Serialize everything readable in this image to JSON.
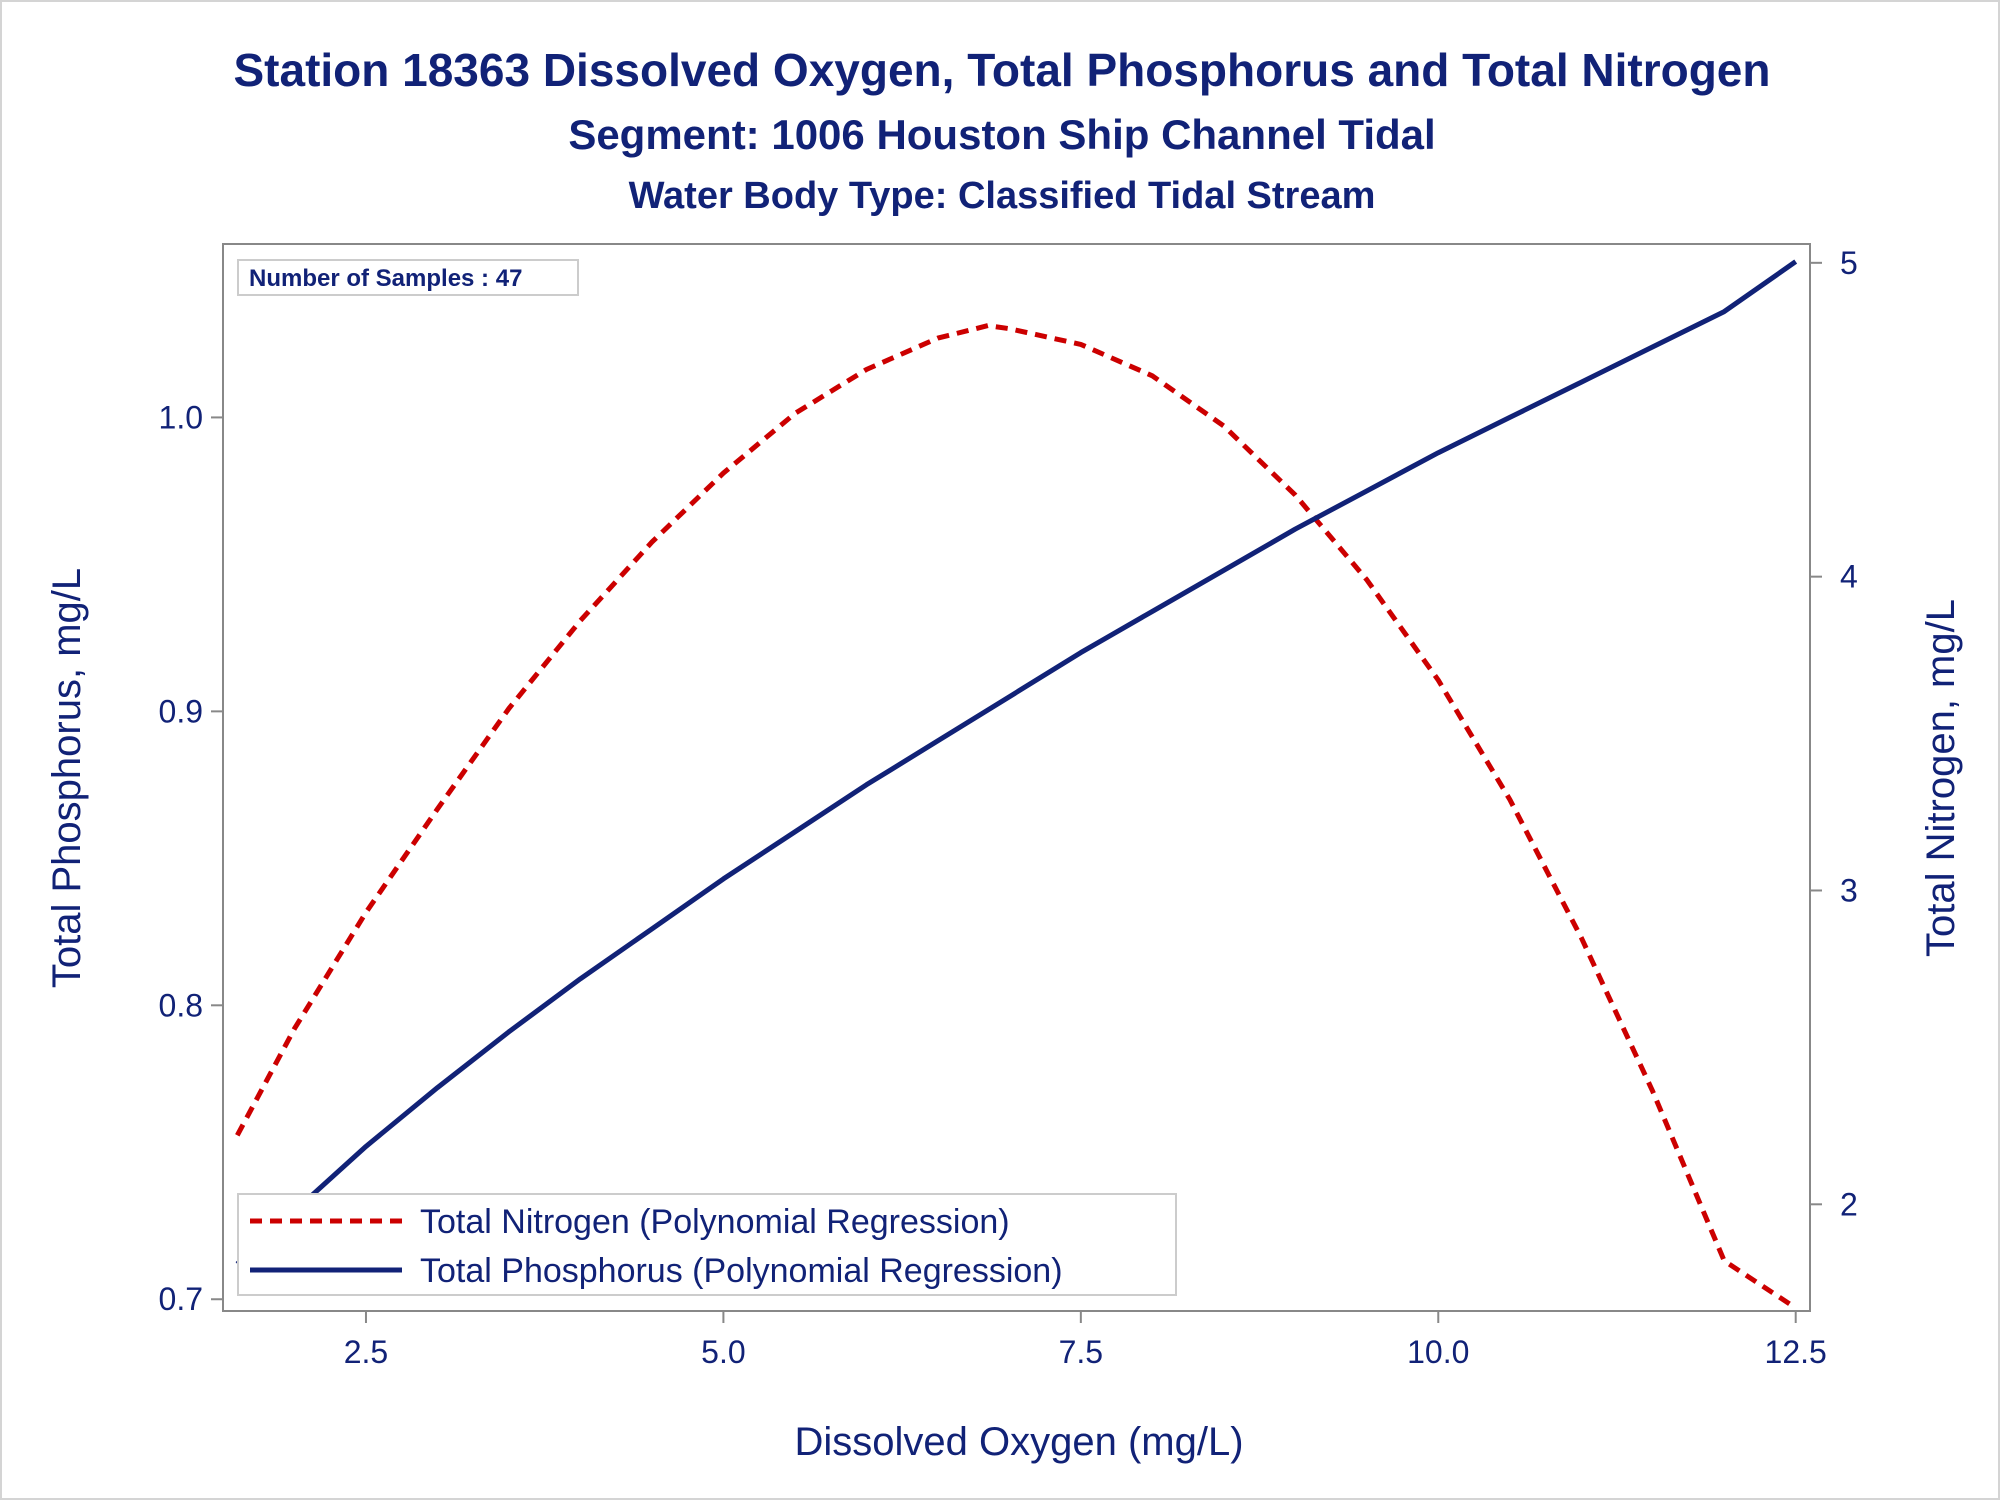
{
  "chart_data": {
    "type": "line",
    "title": "Station 18363  Dissolved Oxygen, Total Phosphorus and Total Nitrogen",
    "subtitle": "Segment: 1006  Houston Ship Channel Tidal",
    "subtitle2": "Water Body Type: Classified Tidal Stream",
    "xlabel": "Dissolved Oxygen (mg/L)",
    "ylabel": "Total Phosphorus, mg/L",
    "y2label": "Total Nitrogen, mg/L",
    "inset": "Number of Samples : 47",
    "xlim": [
      1.5,
      12.6
    ],
    "ylim": [
      0.696,
      1.059
    ],
    "y2lim": [
      1.66,
      5.06
    ],
    "x_ticks": [
      2.5,
      5.0,
      7.5,
      10.0,
      12.5
    ],
    "x_tick_labels": [
      "2.5",
      "5.0",
      "7.5",
      "10.0",
      "12.5"
    ],
    "y_ticks": [
      0.7,
      0.8,
      0.9,
      1.0
    ],
    "y_tick_labels": [
      "0.7",
      "0.8",
      "0.9",
      "1.0"
    ],
    "y2_ticks": [
      2,
      3,
      4,
      5
    ],
    "y2_tick_labels": [
      "2",
      "3",
      "4",
      "5"
    ],
    "grid": false,
    "legend_position": "bottom-left",
    "series": [
      {
        "name": "Total Nitrogen (Polynomial Regression)",
        "axis": "y2",
        "color": "#cc0000",
        "style": "dashed",
        "x": [
          1.6,
          2.0,
          2.5,
          3.0,
          3.5,
          4.0,
          4.5,
          5.0,
          5.5,
          6.0,
          6.5,
          6.85,
          7.0,
          7.5,
          8.0,
          8.5,
          9.0,
          9.5,
          10.0,
          10.5,
          11.0,
          11.5,
          12.0,
          12.5
        ],
        "values": [
          2.22,
          2.56,
          2.93,
          3.26,
          3.58,
          3.86,
          4.11,
          4.33,
          4.52,
          4.66,
          4.76,
          4.8,
          4.79,
          4.74,
          4.64,
          4.48,
          4.26,
          3.99,
          3.67,
          3.29,
          2.85,
          2.36,
          1.82,
          1.67
        ]
      },
      {
        "name": "Total Phosphorus (Polynomial Regression)",
        "axis": "y",
        "color": "#112277",
        "style": "solid",
        "x": [
          1.6,
          2.0,
          2.5,
          3.0,
          3.5,
          4.0,
          4.5,
          5.0,
          5.5,
          6.0,
          6.5,
          7.0,
          7.5,
          8.0,
          8.5,
          9.0,
          9.5,
          10.0,
          10.5,
          11.0,
          11.5,
          12.0,
          12.5
        ],
        "values": [
          0.712,
          0.73,
          0.752,
          0.772,
          0.791,
          0.809,
          0.826,
          0.843,
          0.859,
          0.875,
          0.89,
          0.905,
          0.92,
          0.934,
          0.948,
          0.962,
          0.975,
          0.988,
          1.0,
          1.012,
          1.024,
          1.036,
          1.053
        ]
      }
    ]
  }
}
